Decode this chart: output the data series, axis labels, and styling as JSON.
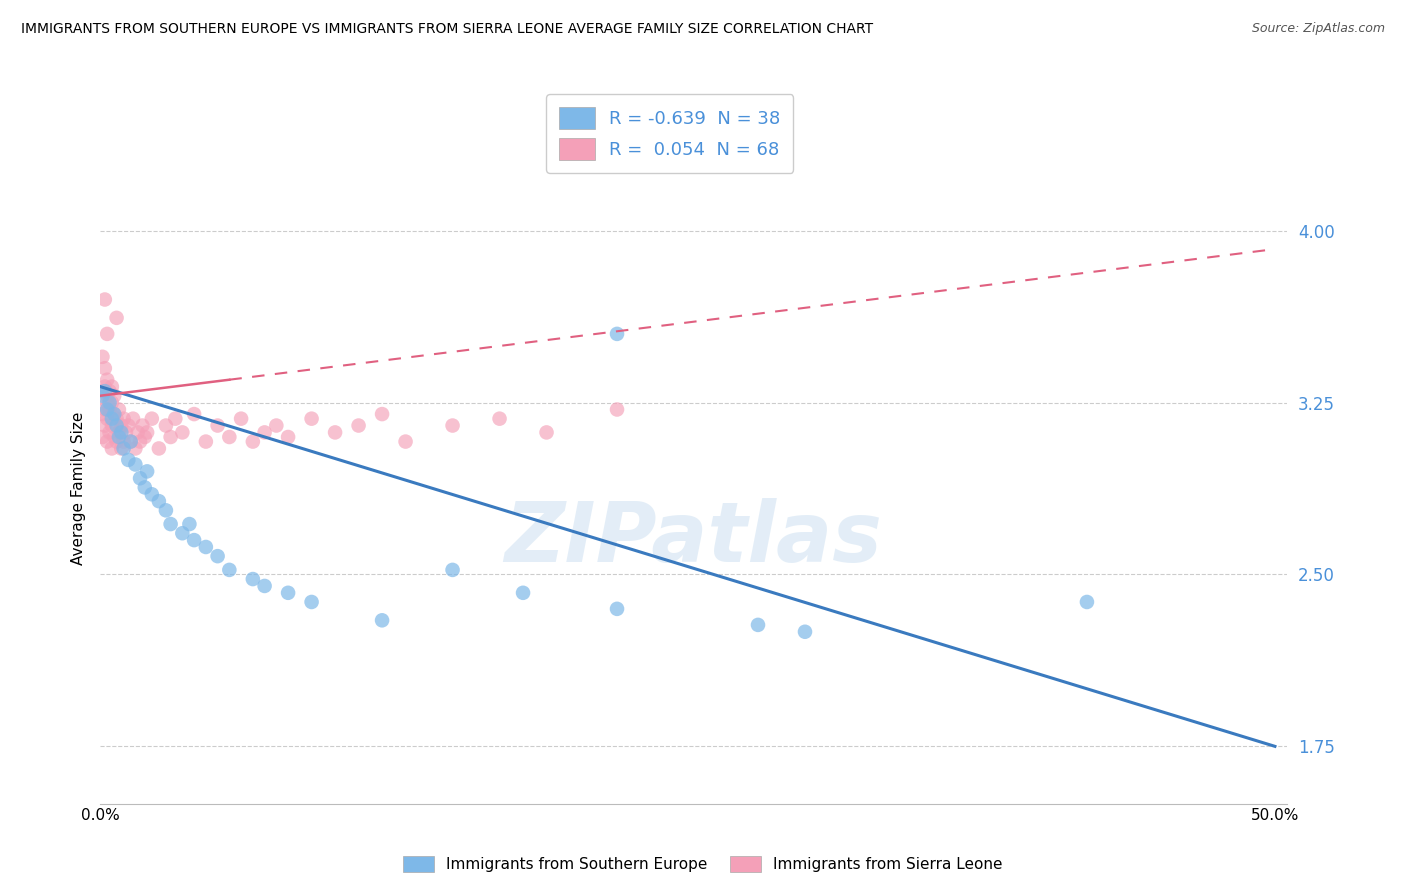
{
  "title": "IMMIGRANTS FROM SOUTHERN EUROPE VS IMMIGRANTS FROM SIERRA LEONE AVERAGE FAMILY SIZE CORRELATION CHART",
  "source": "Source: ZipAtlas.com",
  "ylabel": "Average Family Size",
  "series1_color": "#7eb8e8",
  "series2_color": "#f4a0b8",
  "series1_line_color": "#3a7abf",
  "series2_line_color": "#e06080",
  "series1_label": "Immigrants from Southern Europe",
  "series2_label": "Immigrants from Sierra Leone",
  "series1_R": -0.639,
  "series1_N": 38,
  "series2_R": 0.054,
  "series2_N": 68,
  "watermark": "ZIPatlas",
  "ytick_color": "#4a90d9",
  "ylim": [
    1.5,
    4.25
  ],
  "xlim": [
    0.0,
    0.505
  ],
  "yticks": [
    1.75,
    2.5,
    3.25,
    4.0
  ],
  "blue_line_x": [
    0.0,
    0.5
  ],
  "blue_line_y": [
    3.32,
    1.75
  ],
  "pink_line_x": [
    0.0,
    0.5
  ],
  "pink_line_y": [
    3.28,
    3.92
  ],
  "blue_scatter_x": [
    0.001,
    0.002,
    0.003,
    0.004,
    0.005,
    0.006,
    0.007,
    0.008,
    0.009,
    0.01,
    0.012,
    0.013,
    0.015,
    0.017,
    0.019,
    0.02,
    0.022,
    0.025,
    0.028,
    0.03,
    0.035,
    0.038,
    0.04,
    0.045,
    0.05,
    0.055,
    0.065,
    0.07,
    0.08,
    0.09,
    0.12,
    0.15,
    0.18,
    0.22,
    0.28,
    0.3,
    0.42,
    0.22
  ],
  "blue_scatter_y": [
    3.28,
    3.3,
    3.22,
    3.25,
    3.18,
    3.2,
    3.15,
    3.1,
    3.12,
    3.05,
    3.0,
    3.08,
    2.98,
    2.92,
    2.88,
    2.95,
    2.85,
    2.82,
    2.78,
    2.72,
    2.68,
    2.72,
    2.65,
    2.62,
    2.58,
    2.52,
    2.48,
    2.45,
    2.42,
    2.38,
    2.3,
    2.52,
    2.42,
    2.35,
    2.28,
    2.25,
    2.38,
    3.55
  ],
  "pink_scatter_x": [
    0.001,
    0.001,
    0.001,
    0.001,
    0.002,
    0.002,
    0.002,
    0.002,
    0.003,
    0.003,
    0.003,
    0.003,
    0.003,
    0.004,
    0.004,
    0.004,
    0.005,
    0.005,
    0.005,
    0.005,
    0.006,
    0.006,
    0.006,
    0.007,
    0.007,
    0.008,
    0.008,
    0.009,
    0.009,
    0.01,
    0.01,
    0.011,
    0.012,
    0.013,
    0.014,
    0.015,
    0.016,
    0.017,
    0.018,
    0.019,
    0.02,
    0.022,
    0.025,
    0.028,
    0.03,
    0.032,
    0.035,
    0.04,
    0.045,
    0.05,
    0.055,
    0.06,
    0.065,
    0.07,
    0.075,
    0.08,
    0.09,
    0.1,
    0.11,
    0.12,
    0.13,
    0.15,
    0.17,
    0.19,
    0.22,
    0.007,
    0.003,
    0.002
  ],
  "pink_scatter_y": [
    3.1,
    3.2,
    3.3,
    3.45,
    3.15,
    3.22,
    3.32,
    3.4,
    3.08,
    3.18,
    3.25,
    3.35,
    3.28,
    3.12,
    3.22,
    3.3,
    3.05,
    3.15,
    3.25,
    3.32,
    3.1,
    3.2,
    3.28,
    3.08,
    3.18,
    3.12,
    3.22,
    3.05,
    3.15,
    3.08,
    3.18,
    3.12,
    3.15,
    3.08,
    3.18,
    3.05,
    3.12,
    3.08,
    3.15,
    3.1,
    3.12,
    3.18,
    3.05,
    3.15,
    3.1,
    3.18,
    3.12,
    3.2,
    3.08,
    3.15,
    3.1,
    3.18,
    3.08,
    3.12,
    3.15,
    3.1,
    3.18,
    3.12,
    3.15,
    3.2,
    3.08,
    3.15,
    3.18,
    3.12,
    3.22,
    3.62,
    3.55,
    3.7
  ]
}
